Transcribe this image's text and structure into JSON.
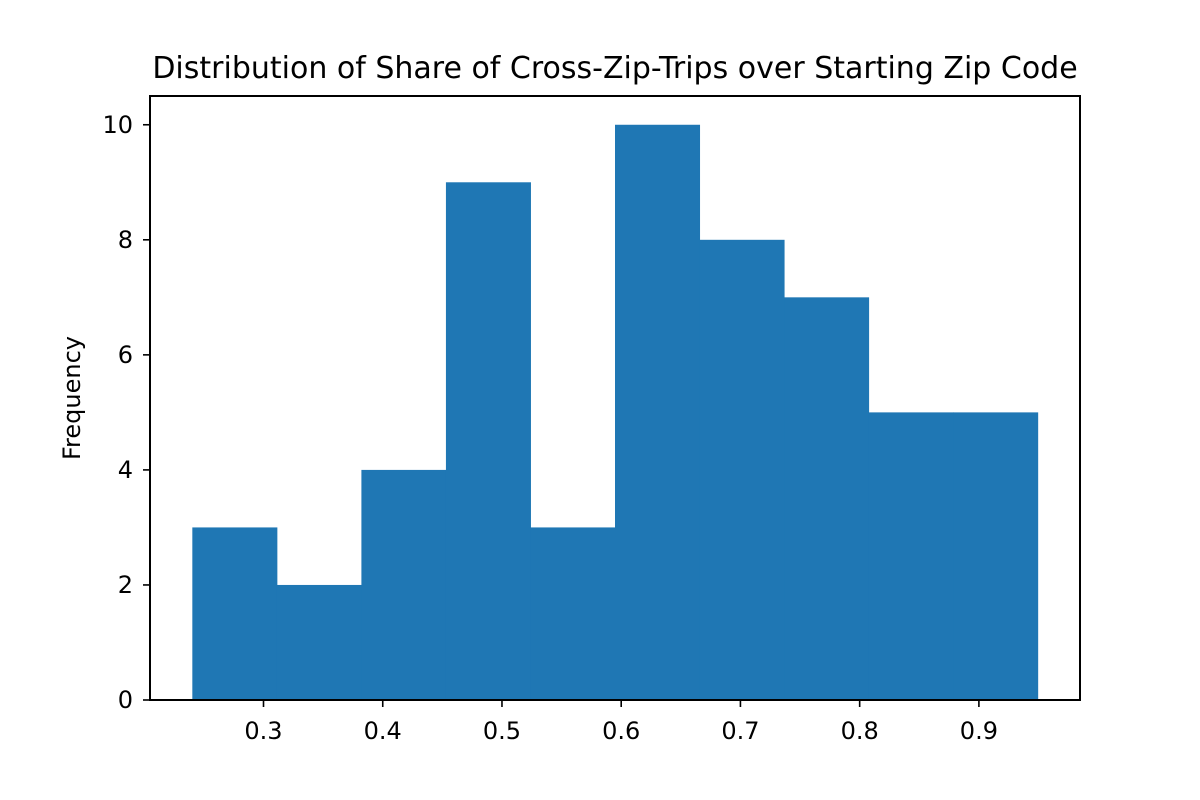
{
  "chart_data": {
    "type": "bar",
    "title": "Distribution of Share of Cross-Zip-Trips over Starting Zip Code",
    "xlabel": "",
    "ylabel": "Frequency",
    "bin_edges": [
      0.2403,
      0.3112,
      0.3821,
      0.453,
      0.5239,
      0.5948,
      0.6657,
      0.7366,
      0.8075,
      0.8784,
      0.9493
    ],
    "values": [
      3,
      2,
      4,
      9,
      3,
      10,
      8,
      7,
      5,
      5
    ],
    "xlim": [
      0.2048,
      0.9848
    ],
    "ylim": [
      0,
      10.5
    ],
    "xticks": [
      0.3,
      0.4,
      0.5,
      0.6,
      0.7,
      0.8,
      0.9
    ],
    "xtick_labels": [
      "0.3",
      "0.4",
      "0.5",
      "0.6",
      "0.7",
      "0.8",
      "0.9"
    ],
    "yticks": [
      0,
      2,
      4,
      6,
      8,
      10
    ],
    "ytick_labels": [
      "0",
      "2",
      "4",
      "6",
      "8",
      "10"
    ],
    "bar_color": "#1f77b4",
    "grid": false,
    "legend": "none"
  }
}
